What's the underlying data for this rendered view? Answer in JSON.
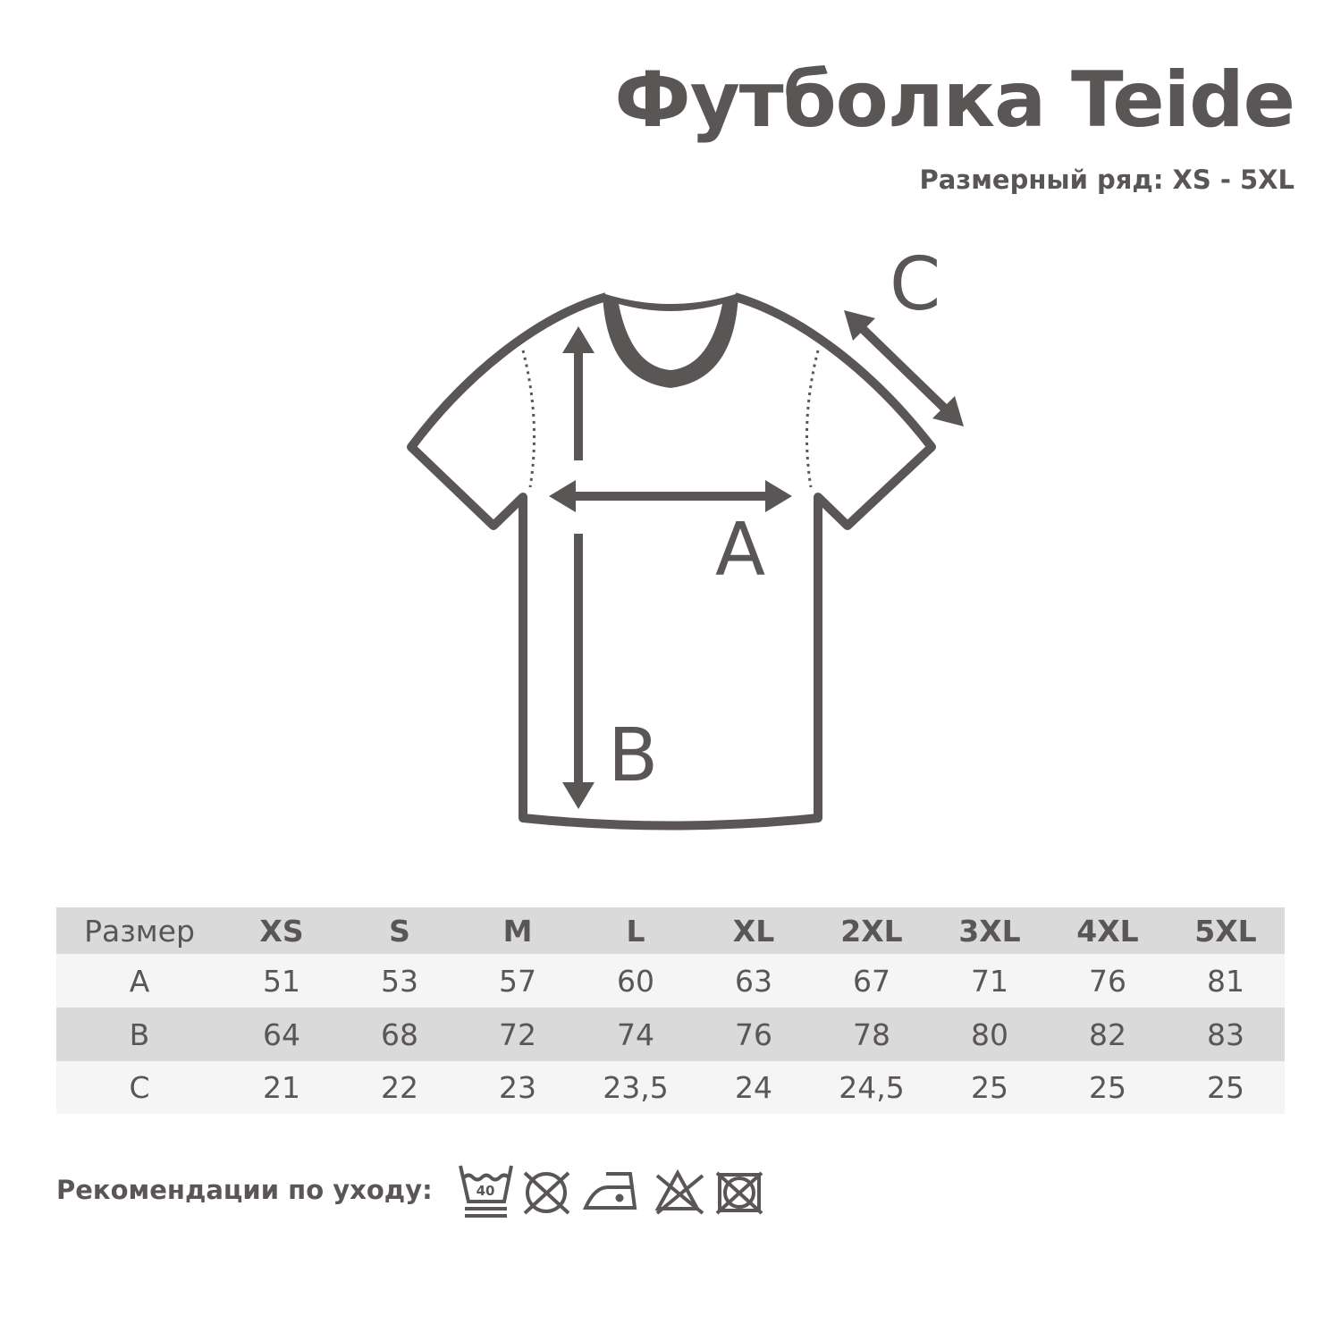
{
  "title": "Футболка Teide",
  "subtitle": "Размерный ряд: XS - 5XL",
  "diagram": {
    "label_a": "A",
    "label_b": "B",
    "label_c": "C"
  },
  "table": {
    "header": [
      "Размер",
      "XS",
      "S",
      "M",
      "L",
      "XL",
      "2XL",
      "3XL",
      "4XL",
      "5XL"
    ],
    "rows": [
      [
        "A",
        "51",
        "53",
        "57",
        "60",
        "63",
        "67",
        "71",
        "76",
        "81"
      ],
      [
        "B",
        "64",
        "68",
        "72",
        "74",
        "76",
        "78",
        "80",
        "82",
        "83"
      ],
      [
        "C",
        "21",
        "22",
        "23",
        "23,5",
        "24",
        "24,5",
        "25",
        "25",
        "25"
      ]
    ]
  },
  "care": {
    "label": "Рекомендации по уходу:",
    "wash_temp": "40",
    "icons": [
      "wash-40-gentle-icon",
      "no-tumble-dry-icon",
      "iron-low-icon",
      "no-bleach-icon",
      "no-dry-clean-icon"
    ]
  },
  "colors": {
    "text": "#5a5655",
    "row_dark": "#dadada",
    "row_light": "#f5f5f5"
  }
}
